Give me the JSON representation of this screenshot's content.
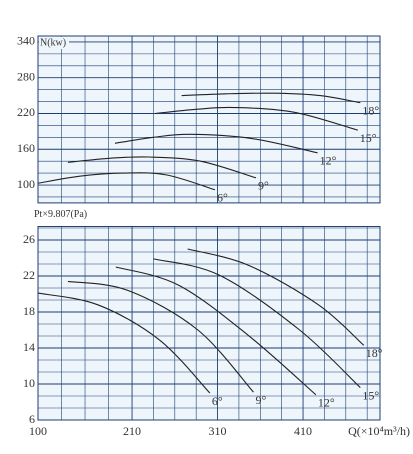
{
  "chart_data": [
    {
      "type": "line",
      "y_label": "N(kw)",
      "color": "#1d3f73",
      "xlim": [
        100,
        500
      ],
      "ylim": [
        70,
        350
      ],
      "yticks": [
        100,
        160,
        220,
        280,
        340
      ],
      "grid": true,
      "series": [
        {
          "name": "6°",
          "color": "#222222",
          "x": [
            100,
            150,
            200,
            250,
            307
          ],
          "values": [
            103,
            115,
            120,
            117,
            92
          ]
        },
        {
          "name": "9°",
          "color": "#222222",
          "x": [
            135,
            185,
            230,
            290,
            355
          ],
          "values": [
            138,
            145,
            147,
            140,
            112
          ]
        },
        {
          "name": "12°",
          "color": "#222222",
          "x": [
            190,
            235,
            278,
            350,
            427
          ],
          "values": [
            170,
            180,
            185,
            178,
            154
          ]
        },
        {
          "name": "15°",
          "color": "#222222",
          "x": [
            237,
            285,
            330,
            400,
            474
          ],
          "values": [
            220,
            227,
            230,
            222,
            192
          ]
        },
        {
          "name": "18°",
          "color": "#222222",
          "x": [
            268,
            320,
            377,
            430,
            477
          ],
          "values": [
            250,
            253,
            254,
            250,
            238
          ]
        }
      ]
    },
    {
      "type": "line",
      "y_label": "Pt×9.807(Pa)",
      "x_label": "Q(×10⁴m³/h)",
      "color": "#1d3f73",
      "xlim": [
        100,
        500
      ],
      "ylim": [
        6,
        27.5
      ],
      "xticks": [
        100,
        210,
        310,
        410
      ],
      "yticks": [
        6,
        10,
        14,
        18,
        22,
        26
      ],
      "grid": true,
      "series": [
        {
          "name": "6°",
          "color": "#222222",
          "x": [
            100,
            170,
            242,
            301
          ],
          "values": [
            20.1,
            18.8,
            14.9,
            9.0
          ]
        },
        {
          "name": "9°",
          "color": "#222222",
          "x": [
            135,
            205,
            287,
            352
          ],
          "values": [
            21.4,
            20.4,
            16.0,
            9.1
          ]
        },
        {
          "name": "12°",
          "color": "#222222",
          "x": [
            191,
            264,
            346,
            425
          ],
          "values": [
            23.0,
            21.0,
            15.4,
            8.8
          ]
        },
        {
          "name": "15°",
          "color": "#222222",
          "x": [
            235,
            312,
            406,
            477
          ],
          "values": [
            23.9,
            22.1,
            16.0,
            9.6
          ]
        },
        {
          "name": "18°",
          "color": "#222222",
          "x": [
            275,
            346,
            428,
            481
          ],
          "values": [
            25.0,
            23.2,
            18.8,
            14.3
          ]
        }
      ]
    }
  ]
}
